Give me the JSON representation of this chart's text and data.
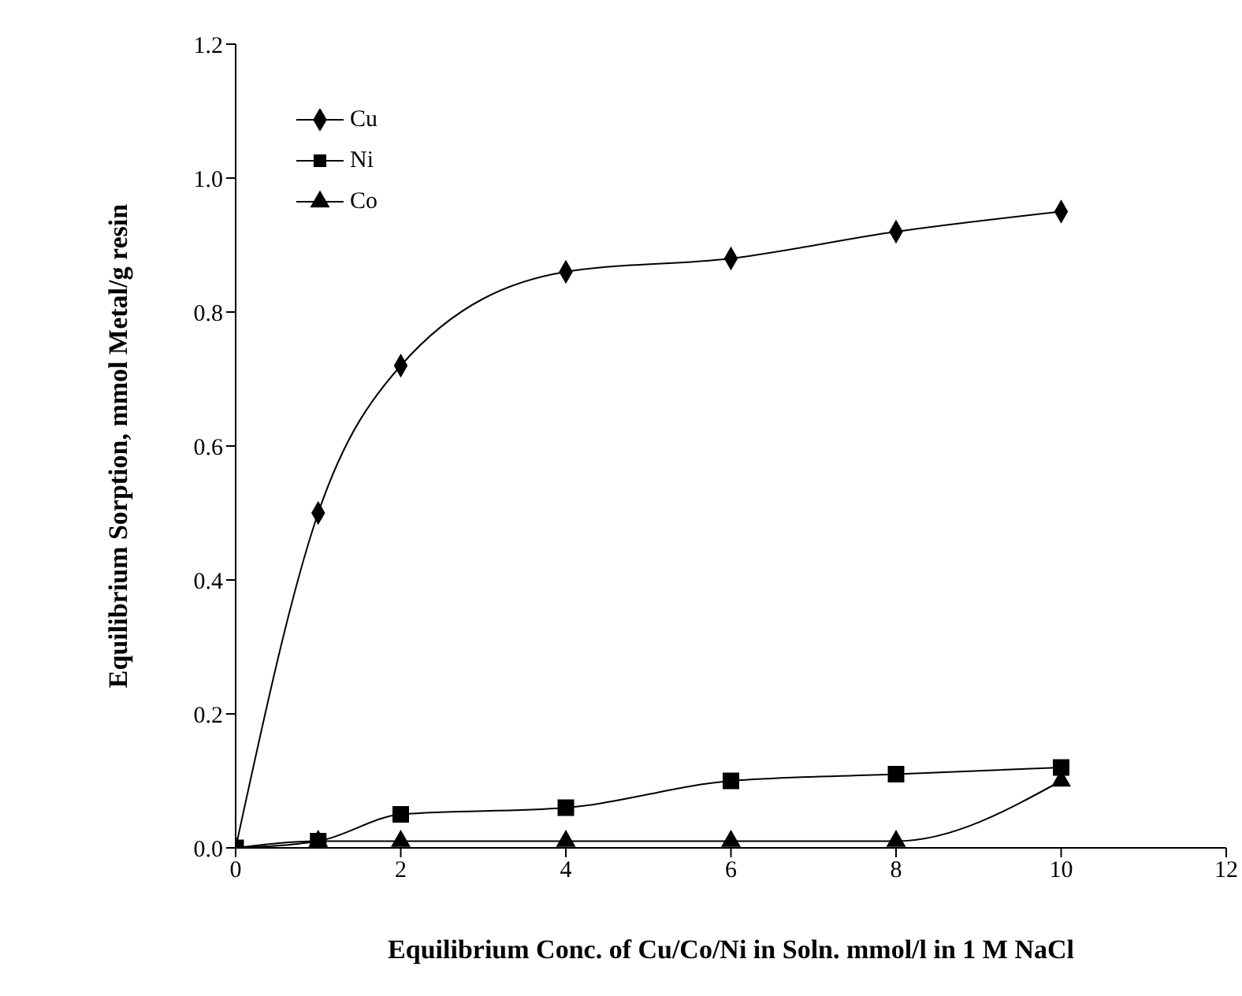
{
  "chart_data": {
    "type": "line",
    "xlabel": "Equilibrium Conc. of Cu/Co/Ni in Soln. mmol/l in 1 M NaCl",
    "ylabel": "Equilibrium Sorption, mmol Metal/g resin",
    "x": [
      0,
      1,
      2,
      4,
      6,
      8,
      10
    ],
    "series": [
      {
        "name": "Cu",
        "color": "#000000",
        "marker": "diamond",
        "values": [
          0,
          0.5,
          0.72,
          0.86,
          0.88,
          0.92,
          0.95
        ]
      },
      {
        "name": "Ni",
        "color": "#000000",
        "marker": "square",
        "values": [
          0,
          0.01,
          0.05,
          0.06,
          0.1,
          0.11,
          0.12
        ]
      },
      {
        "name": "Co",
        "color": "#000000",
        "marker": "triangle",
        "values": [
          0,
          0.01,
          0.01,
          0.01,
          0.01,
          0.01,
          0.1
        ]
      }
    ],
    "xlim": [
      0,
      12
    ],
    "xticks": [
      0,
      2,
      4,
      6,
      8,
      10,
      12
    ],
    "ylim": [
      0,
      1.2
    ],
    "yticks": [
      {
        "value": 0,
        "label": "0.0"
      },
      {
        "value": 0.2,
        "label": "0.2"
      },
      {
        "value": 0.4,
        "label": "0.4"
      },
      {
        "value": 0.6,
        "label": "0.6"
      },
      {
        "value": 0.8,
        "label": "0.8"
      },
      {
        "value": 1,
        "label": "1.0"
      },
      {
        "value": 1.2,
        "label": "1.2"
      }
    ],
    "grid": false,
    "legend": "top left",
    "line_style": "solid"
  }
}
